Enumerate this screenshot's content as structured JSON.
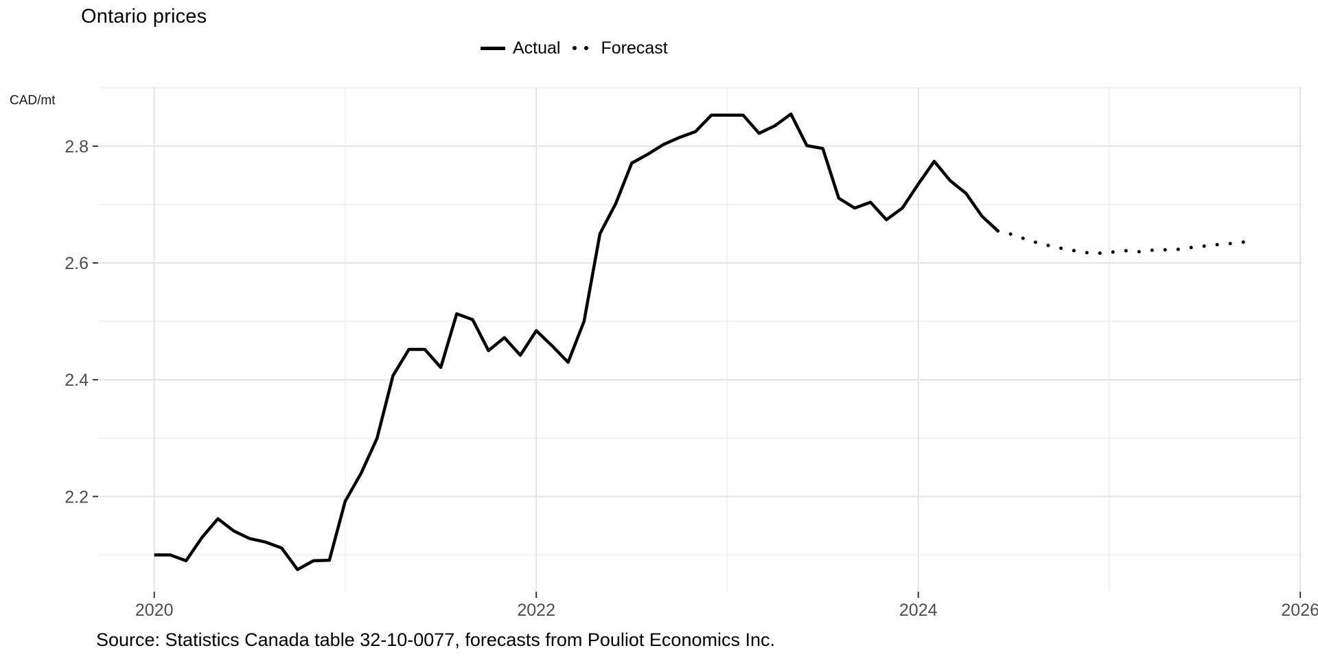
{
  "title": "Ontario prices",
  "y_axis_unit": "CAD/mt",
  "legend": {
    "actual_label": "Actual",
    "forecast_label": "Forecast"
  },
  "source": "Source: Statistics Canada table 32-10-0077, forecasts from Pouliot Economics Inc.",
  "colors": {
    "line": "#000000",
    "axis_text": "#4d4d4d",
    "tick_mark": "#333333",
    "grid_major": "#e4e4e4",
    "grid_minor": "#eeeeee",
    "background": "#ffffff"
  },
  "chart_data": {
    "type": "line",
    "title": "Ontario prices",
    "xlabel": "",
    "ylabel": "CAD/mt",
    "legend_position": "top",
    "grid": true,
    "xlim": [
      2019.71,
      2026.01
    ],
    "ylim": [
      2.037,
      2.901
    ],
    "x_major_ticks": [
      2020,
      2022,
      2024,
      2026
    ],
    "x_minor_ticks": [
      2021,
      2023,
      2025
    ],
    "y_major_ticks": [
      2.2,
      2.4,
      2.6,
      2.8
    ],
    "y_minor_ticks": [
      2.1,
      2.3,
      2.5,
      2.7,
      2.9
    ],
    "series": [
      {
        "name": "Actual",
        "style": "solid",
        "start_month": "2020-01",
        "values": [
          2.1,
          2.1,
          2.09,
          2.13,
          2.162,
          2.141,
          2.128,
          2.122,
          2.112,
          2.075,
          2.09,
          2.091,
          2.192,
          2.24,
          2.3,
          2.407,
          2.452,
          2.452,
          2.421,
          2.513,
          2.503,
          2.45,
          2.472,
          2.442,
          2.484,
          2.458,
          2.43,
          2.5,
          2.65,
          2.702,
          2.771,
          2.786,
          2.803,
          2.815,
          2.825,
          2.853,
          2.853,
          2.853,
          2.822,
          2.835,
          2.855,
          2.801,
          2.796,
          2.711,
          2.694,
          2.704,
          2.674,
          2.694,
          2.735,
          2.774,
          2.741,
          2.719,
          2.68,
          2.655
        ]
      },
      {
        "name": "Forecast",
        "style": "dotted",
        "start_month": "2024-06",
        "values": [
          2.655,
          2.648,
          2.638,
          2.631,
          2.625,
          2.62,
          2.616,
          2.618,
          2.621,
          2.619,
          2.623,
          2.622,
          2.626,
          2.629,
          2.632,
          2.634,
          2.638
        ]
      }
    ]
  }
}
